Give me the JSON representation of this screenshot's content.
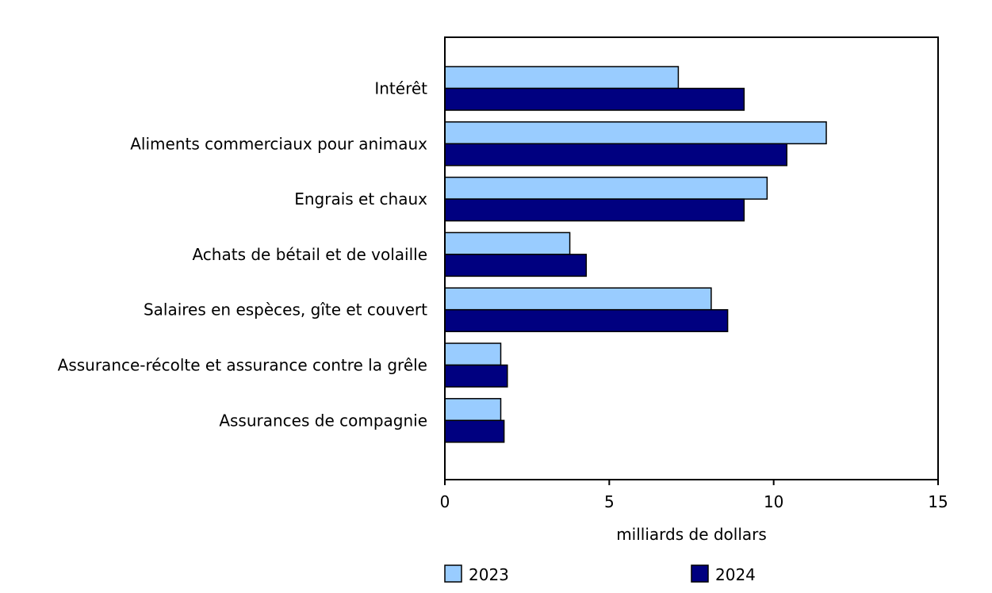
{
  "chart_data": {
    "type": "bar",
    "orientation": "horizontal",
    "categories": [
      "Intérêt",
      "Aliments commerciaux pour animaux",
      "Engrais et chaux",
      "Achats de bétail et de volaille",
      "Salaires en espèces, gîte et couvert",
      "Assurance-récolte et assurance contre la grêle",
      "Assurances de compagnie"
    ],
    "series": [
      {
        "name": "2023",
        "color": "#99ccff",
        "values": [
          7.1,
          11.6,
          9.8,
          3.8,
          8.1,
          1.7,
          1.7
        ]
      },
      {
        "name": "2024",
        "color": "#000080",
        "values": [
          9.1,
          10.4,
          9.1,
          4.3,
          8.6,
          1.9,
          1.8
        ]
      }
    ],
    "xlabel": "milliards de dollars",
    "xlim": [
      0,
      15
    ],
    "xticks": [
      "0",
      "5",
      "10",
      "15"
    ],
    "grid": false,
    "legend_position": "bottom"
  }
}
